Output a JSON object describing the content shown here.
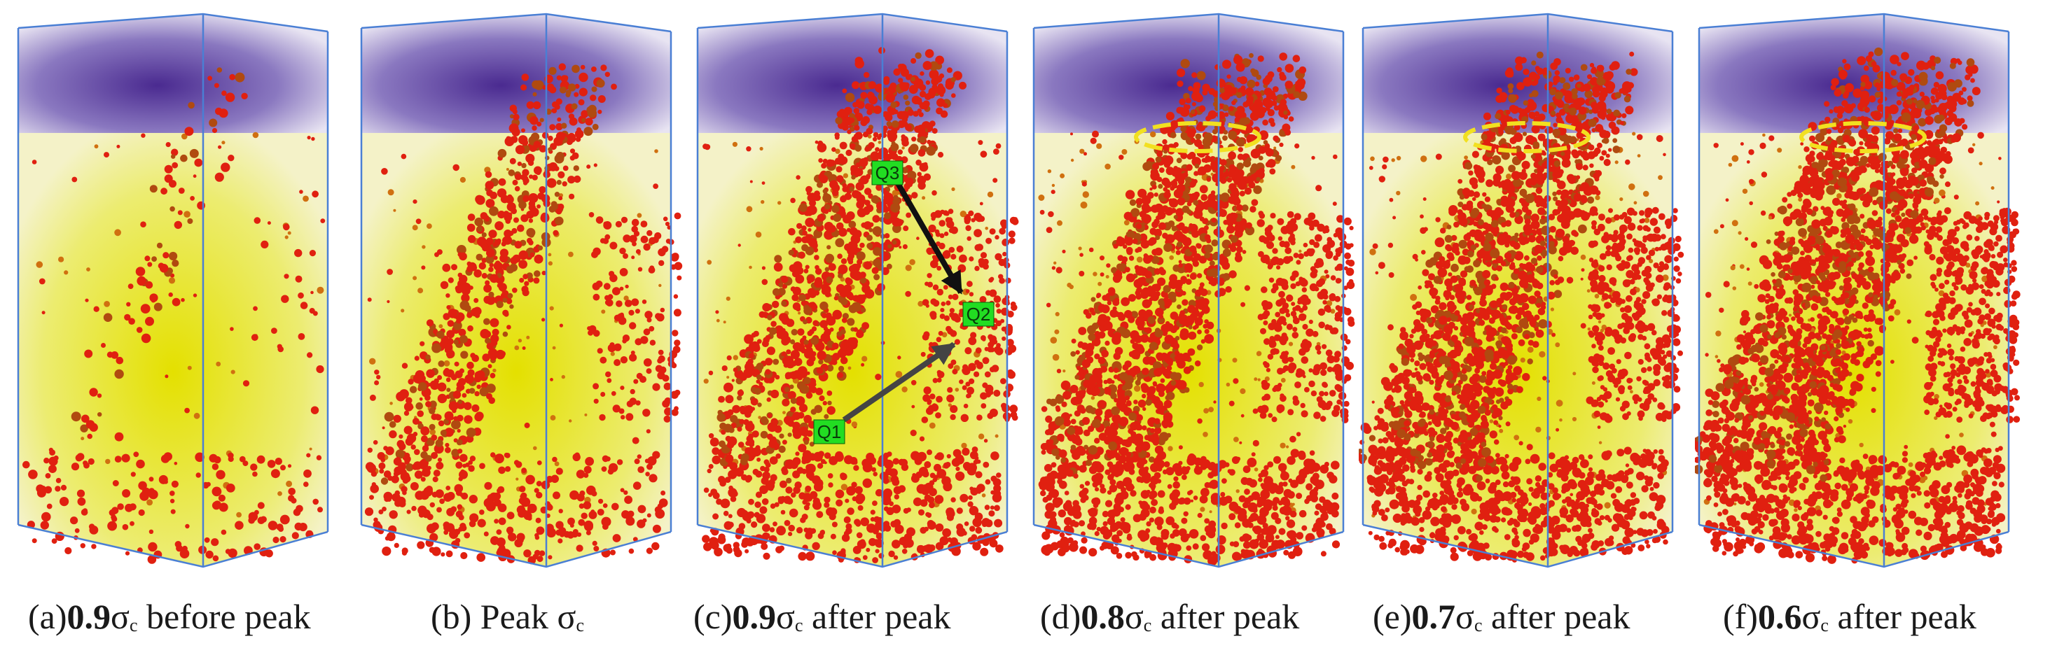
{
  "panels": [
    {
      "prefix": "(a)",
      "value": "0.9",
      "sigma": "σ",
      "sub": "c",
      "suffix": " before peak",
      "crack_level": 0.05
    },
    {
      "prefix": "(b) Peak ",
      "value": "",
      "sigma": "σ",
      "sub": "c",
      "suffix": "",
      "crack_level": 0.35
    },
    {
      "prefix": "(c)",
      "value": "0.9",
      "sigma": "σ",
      "sub": "c",
      "suffix": " after peak",
      "crack_level": 0.6
    },
    {
      "prefix": "(d)",
      "value": "0.8",
      "sigma": "σ",
      "sub": "c",
      "suffix": " after peak",
      "crack_level": 0.8
    },
    {
      "prefix": "(e)",
      "value": "0.7",
      "sigma": "σ",
      "sub": "c",
      "suffix": " after peak",
      "crack_level": 0.9
    },
    {
      "prefix": "(f)",
      "value": "0.6",
      "sigma": "σ",
      "sub": "c",
      "suffix": " after peak",
      "crack_level": 1.0
    }
  ],
  "annotations": {
    "q1": "Q1",
    "q2": "Q2",
    "q3": "Q3"
  },
  "colors": {
    "box_edge": "#4a7fd4",
    "top_platen": "#5a3a9a",
    "specimen": "#e8e060",
    "crack": "#e02010",
    "marker_ellipse": "#f2e020",
    "label_bg": "#22dd22"
  }
}
